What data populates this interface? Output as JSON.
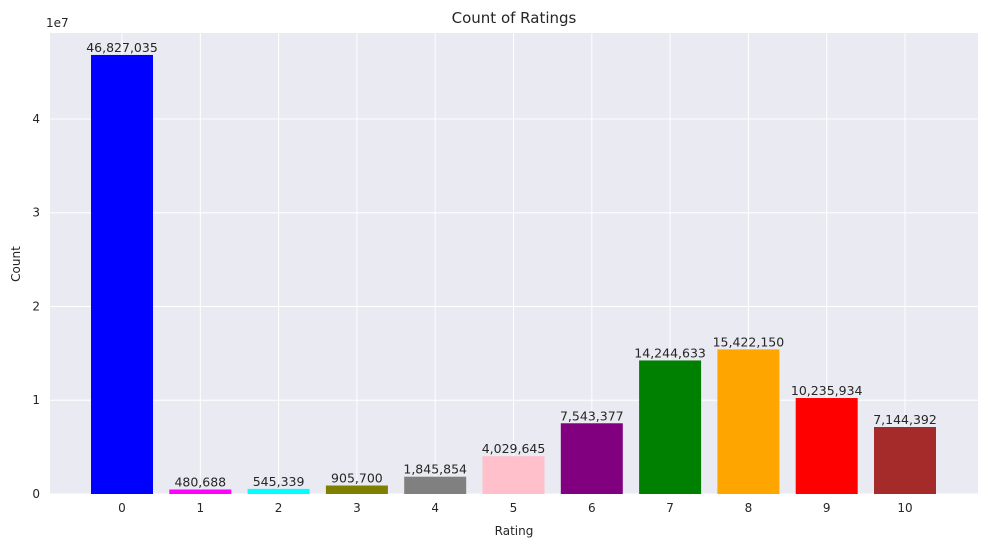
{
  "chart_data": {
    "type": "bar",
    "title": "Count of Ratings",
    "xlabel": "Rating",
    "ylabel": "Count",
    "y_offset_text": "1e7",
    "categories": [
      "0",
      "1",
      "2",
      "3",
      "4",
      "5",
      "6",
      "7",
      "8",
      "9",
      "10"
    ],
    "values": [
      46827035,
      480688,
      545339,
      905700,
      1845854,
      4029645,
      7543377,
      14244633,
      15422150,
      10235934,
      7144392
    ],
    "value_labels": [
      "46,827,035",
      "480,688",
      "545,339",
      "905,700",
      "1,845,854",
      "4,029,645",
      "7,543,377",
      "14,244,633",
      "15,422,150",
      "10,235,934",
      "7,144,392"
    ],
    "colors": [
      "#0000ff",
      "#ff00ff",
      "#00ffff",
      "#808000",
      "#808080",
      "#ffc0cb",
      "#800080",
      "#008000",
      "#ffa500",
      "#ff0000",
      "#a52a2a"
    ],
    "yticks": [
      0,
      10000000,
      20000000,
      30000000,
      40000000
    ],
    "ytick_labels": [
      "0",
      "1",
      "2",
      "3",
      "4"
    ],
    "ylim": [
      0,
      49168387
    ],
    "grid": true,
    "background": "#eaeaf2",
    "legend": "none"
  }
}
